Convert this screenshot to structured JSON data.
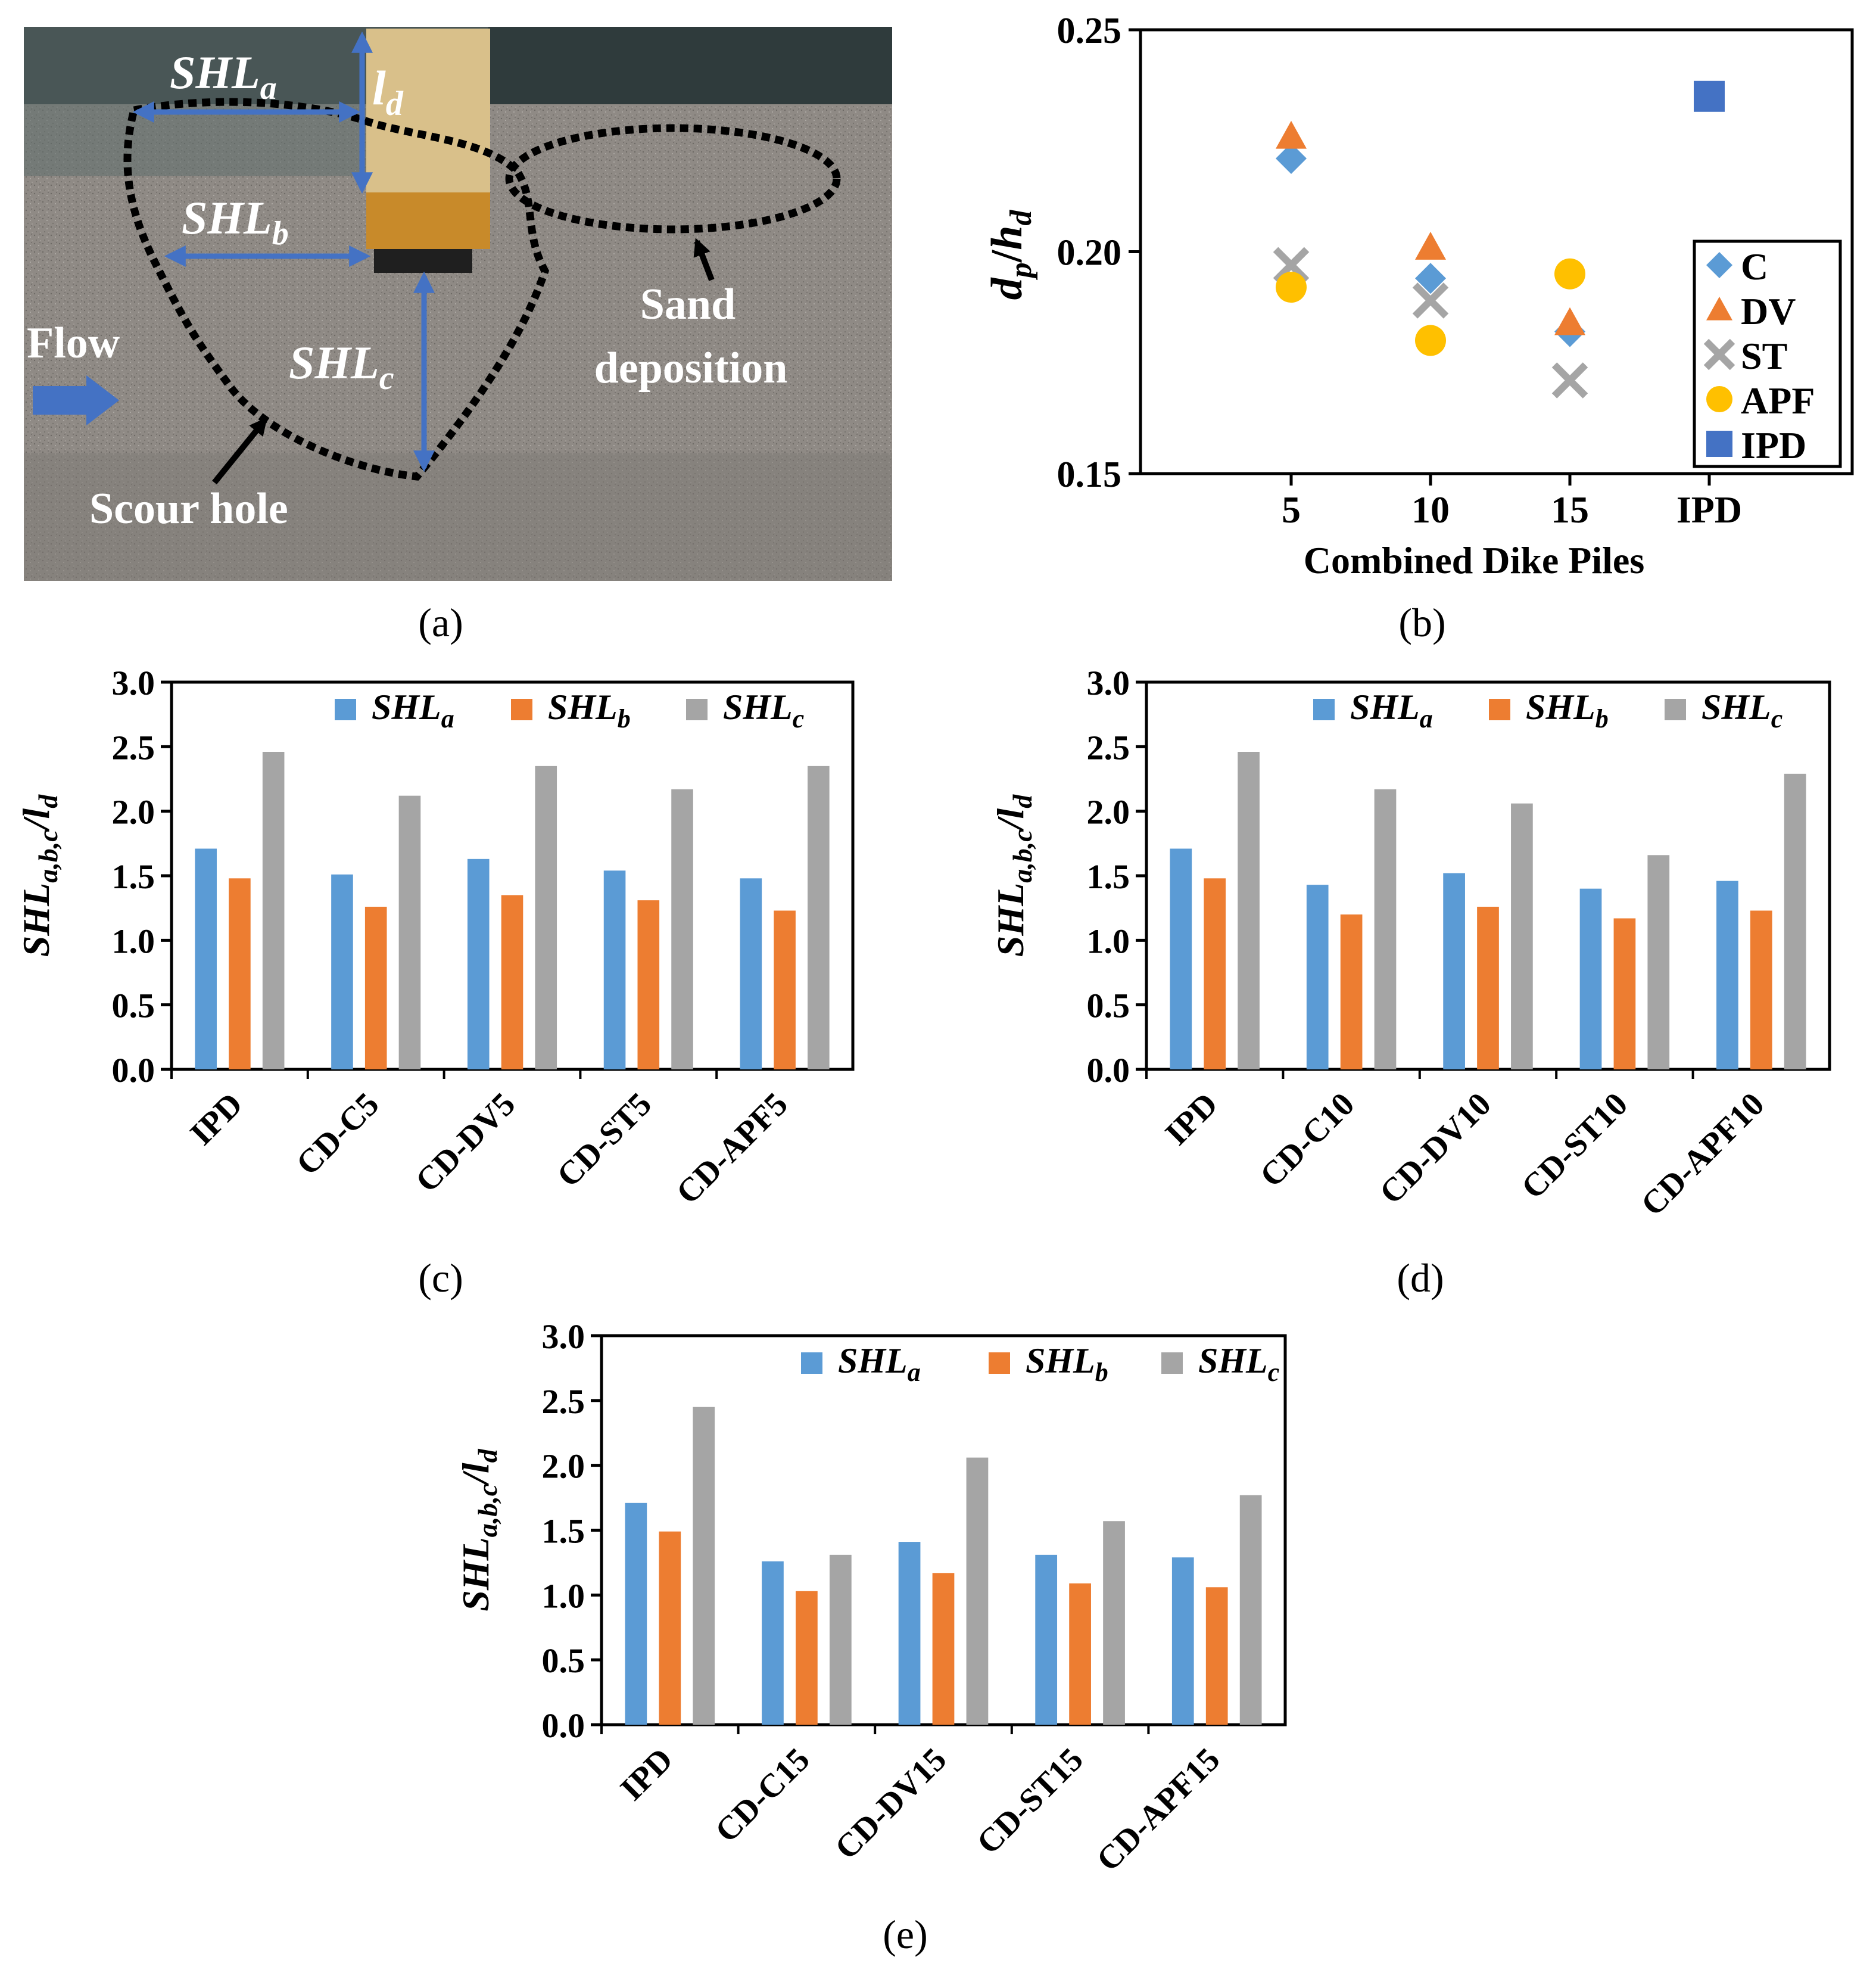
{
  "panel_a": {
    "caption": "(a)",
    "labels": {
      "shl_a": {
        "main": "SHL",
        "sub": "a"
      },
      "shl_b": {
        "main": "SHL",
        "sub": "b"
      },
      "shl_c": {
        "main": "SHL",
        "sub": "c"
      },
      "l_d": {
        "main": "l",
        "sub": "d"
      },
      "flow": "Flow",
      "scour_hole": "Scour hole",
      "sand_line1": "Sand",
      "sand_line2": "deposition"
    },
    "colors": {
      "sand": "#8f8a85",
      "block": "#c88a2a",
      "arrow": "#4472c4"
    }
  },
  "chart_data": [
    {
      "id": "b",
      "type": "scatter",
      "caption": "(b)",
      "xlabel": "Combined Dike Piles",
      "ylabel": {
        "a": "d",
        "a_sub": "p",
        "slash": "/",
        "b": "h",
        "b_sub": "d"
      },
      "categories": [
        "5",
        "10",
        "15",
        "IPD"
      ],
      "ylim": [
        0.15,
        0.25
      ],
      "yticks": [
        "0.15",
        "0.20",
        "0.25"
      ],
      "legend_position": "right",
      "series": [
        {
          "name": "C",
          "marker": "diamond",
          "color": "#5b9bd5",
          "x": [
            "5",
            "10",
            "15"
          ],
          "values": [
            0.221,
            0.194,
            0.182
          ]
        },
        {
          "name": "DV",
          "marker": "triangle",
          "color": "#ed7d31",
          "x": [
            "5",
            "10",
            "15"
          ],
          "values": [
            0.226,
            0.201,
            0.184
          ]
        },
        {
          "name": "ST",
          "marker": "cross",
          "color": "#a5a5a5",
          "x": [
            "5",
            "10",
            "15"
          ],
          "values": [
            0.197,
            0.189,
            0.171
          ]
        },
        {
          "name": "APF",
          "marker": "circle",
          "color": "#ffc000",
          "x": [
            "5",
            "10",
            "15"
          ],
          "values": [
            0.192,
            0.18,
            0.195
          ]
        },
        {
          "name": "IPD",
          "marker": "square",
          "color": "#4472c4",
          "x": [
            "IPD"
          ],
          "values": [
            0.235
          ]
        }
      ]
    },
    {
      "id": "c",
      "type": "bar",
      "caption": "(c)",
      "ylabel": {
        "main": "SHL",
        "sub": "a,b,c",
        "rest": "/l",
        "rest_sub": "d"
      },
      "ylim": [
        0,
        3.0
      ],
      "yticks": [
        "0.0",
        "0.5",
        "1.0",
        "1.5",
        "2.0",
        "2.5",
        "3.0"
      ],
      "categories": [
        "IPD",
        "CD-C5",
        "CD-DV5",
        "CD-ST5",
        "CD-APF5"
      ],
      "series": [
        {
          "name": "SHL",
          "sub": "a",
          "color": "#5b9bd5",
          "values": [
            1.71,
            1.51,
            1.63,
            1.54,
            1.48
          ]
        },
        {
          "name": "SHL",
          "sub": "b",
          "color": "#ed7d31",
          "values": [
            1.48,
            1.26,
            1.35,
            1.31,
            1.23
          ]
        },
        {
          "name": "SHL",
          "sub": "c",
          "color": "#a5a5a5",
          "values": [
            2.46,
            2.12,
            2.35,
            2.17,
            2.35
          ]
        }
      ]
    },
    {
      "id": "d",
      "type": "bar",
      "caption": "(d)",
      "ylabel": {
        "main": "SHL",
        "sub": "a,b,c",
        "rest": "/l",
        "rest_sub": "d"
      },
      "ylim": [
        0,
        3.0
      ],
      "yticks": [
        "0.0",
        "0.5",
        "1.0",
        "1.5",
        "2.0",
        "2.5",
        "3.0"
      ],
      "categories": [
        "IPD",
        "CD-C10",
        "CD-DV10",
        "CD-ST10",
        "CD-APF10"
      ],
      "series": [
        {
          "name": "SHL",
          "sub": "a",
          "color": "#5b9bd5",
          "values": [
            1.71,
            1.43,
            1.52,
            1.4,
            1.46
          ]
        },
        {
          "name": "SHL",
          "sub": "b",
          "color": "#ed7d31",
          "values": [
            1.48,
            1.2,
            1.26,
            1.17,
            1.23
          ]
        },
        {
          "name": "SHL",
          "sub": "c",
          "color": "#a5a5a5",
          "values": [
            2.46,
            2.17,
            2.06,
            1.66,
            2.29
          ]
        }
      ]
    },
    {
      "id": "e",
      "type": "bar",
      "caption": "(e)",
      "ylabel": {
        "main": "SHL",
        "sub": "a,b,c",
        "rest": "/l",
        "rest_sub": "d"
      },
      "ylim": [
        0,
        3.0
      ],
      "yticks": [
        "0.0",
        "0.5",
        "1.0",
        "1.5",
        "2.0",
        "2.5",
        "3.0"
      ],
      "categories": [
        "IPD",
        "CD-C15",
        "CD-DV15",
        "CD-ST15",
        "CD-APF15"
      ],
      "series": [
        {
          "name": "SHL",
          "sub": "a",
          "color": "#5b9bd5",
          "values": [
            1.71,
            1.26,
            1.41,
            1.31,
            1.29
          ]
        },
        {
          "name": "SHL",
          "sub": "b",
          "color": "#ed7d31",
          "values": [
            1.49,
            1.03,
            1.17,
            1.09,
            1.06
          ]
        },
        {
          "name": "SHL",
          "sub": "c",
          "color": "#a5a5a5",
          "values": [
            2.45,
            1.31,
            2.06,
            1.57,
            1.77
          ]
        }
      ]
    }
  ]
}
